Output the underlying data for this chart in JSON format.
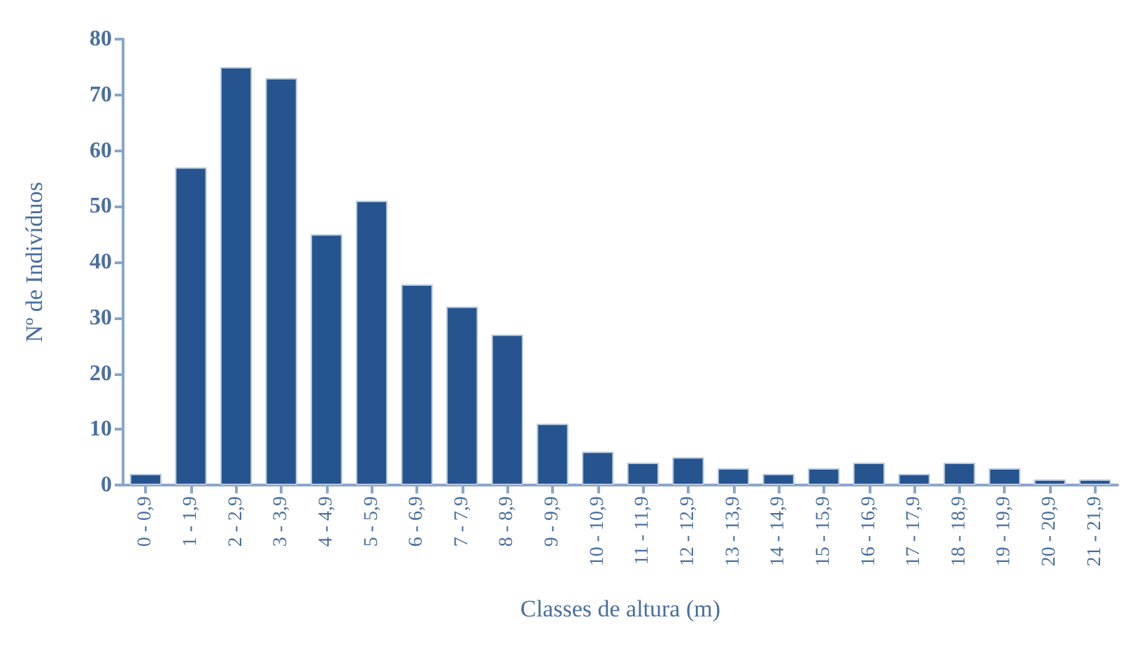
{
  "chart_data": {
    "type": "bar",
    "xlabel": "Classes de altura (m)",
    "ylabel": "Nº de Indivíduos",
    "categories": [
      "0 - 0,9",
      "1 - 1,9",
      "2 - 2,9",
      "3 - 3,9",
      "4 - 4,9",
      "5 - 5,9",
      "6 - 6,9",
      "7 - 7,9",
      "8 - 8,9",
      "9 - 9,9",
      "10 - 10,9",
      "11 - 11,9",
      "12 - 12,9",
      "13 - 13,9",
      "14 - 14,9",
      "15 - 15,9",
      "16 - 16,9",
      "17 - 17,9",
      "18 - 18,9",
      "19 - 19,9",
      "20 - 20,9",
      "21 - 21,9"
    ],
    "values": [
      2,
      57,
      75,
      73,
      45,
      51,
      36,
      32,
      27,
      11,
      6,
      4,
      5,
      3,
      2,
      3,
      4,
      2,
      4,
      3,
      1,
      1
    ],
    "color": "#25548f",
    "ylim": [
      0,
      80
    ],
    "yticks": [
      0,
      10,
      20,
      30,
      40,
      50,
      60,
      70,
      80
    ],
    "grid": false
  }
}
